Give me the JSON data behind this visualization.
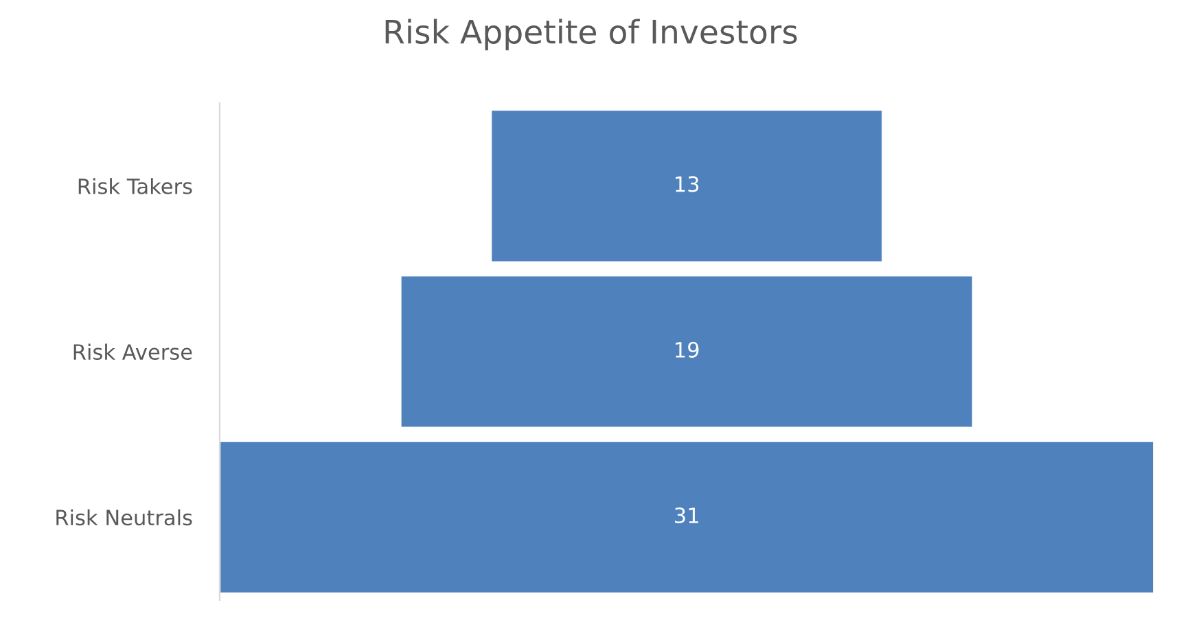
{
  "chart_data": {
    "type": "other",
    "title": "Risk Appetite of Investors",
    "categories": [
      "Risk Takers",
      "Risk Averse",
      "Risk Neutrals"
    ],
    "values": [
      13,
      19,
      31
    ],
    "color": "#4f81bd",
    "data_labels": true
  }
}
